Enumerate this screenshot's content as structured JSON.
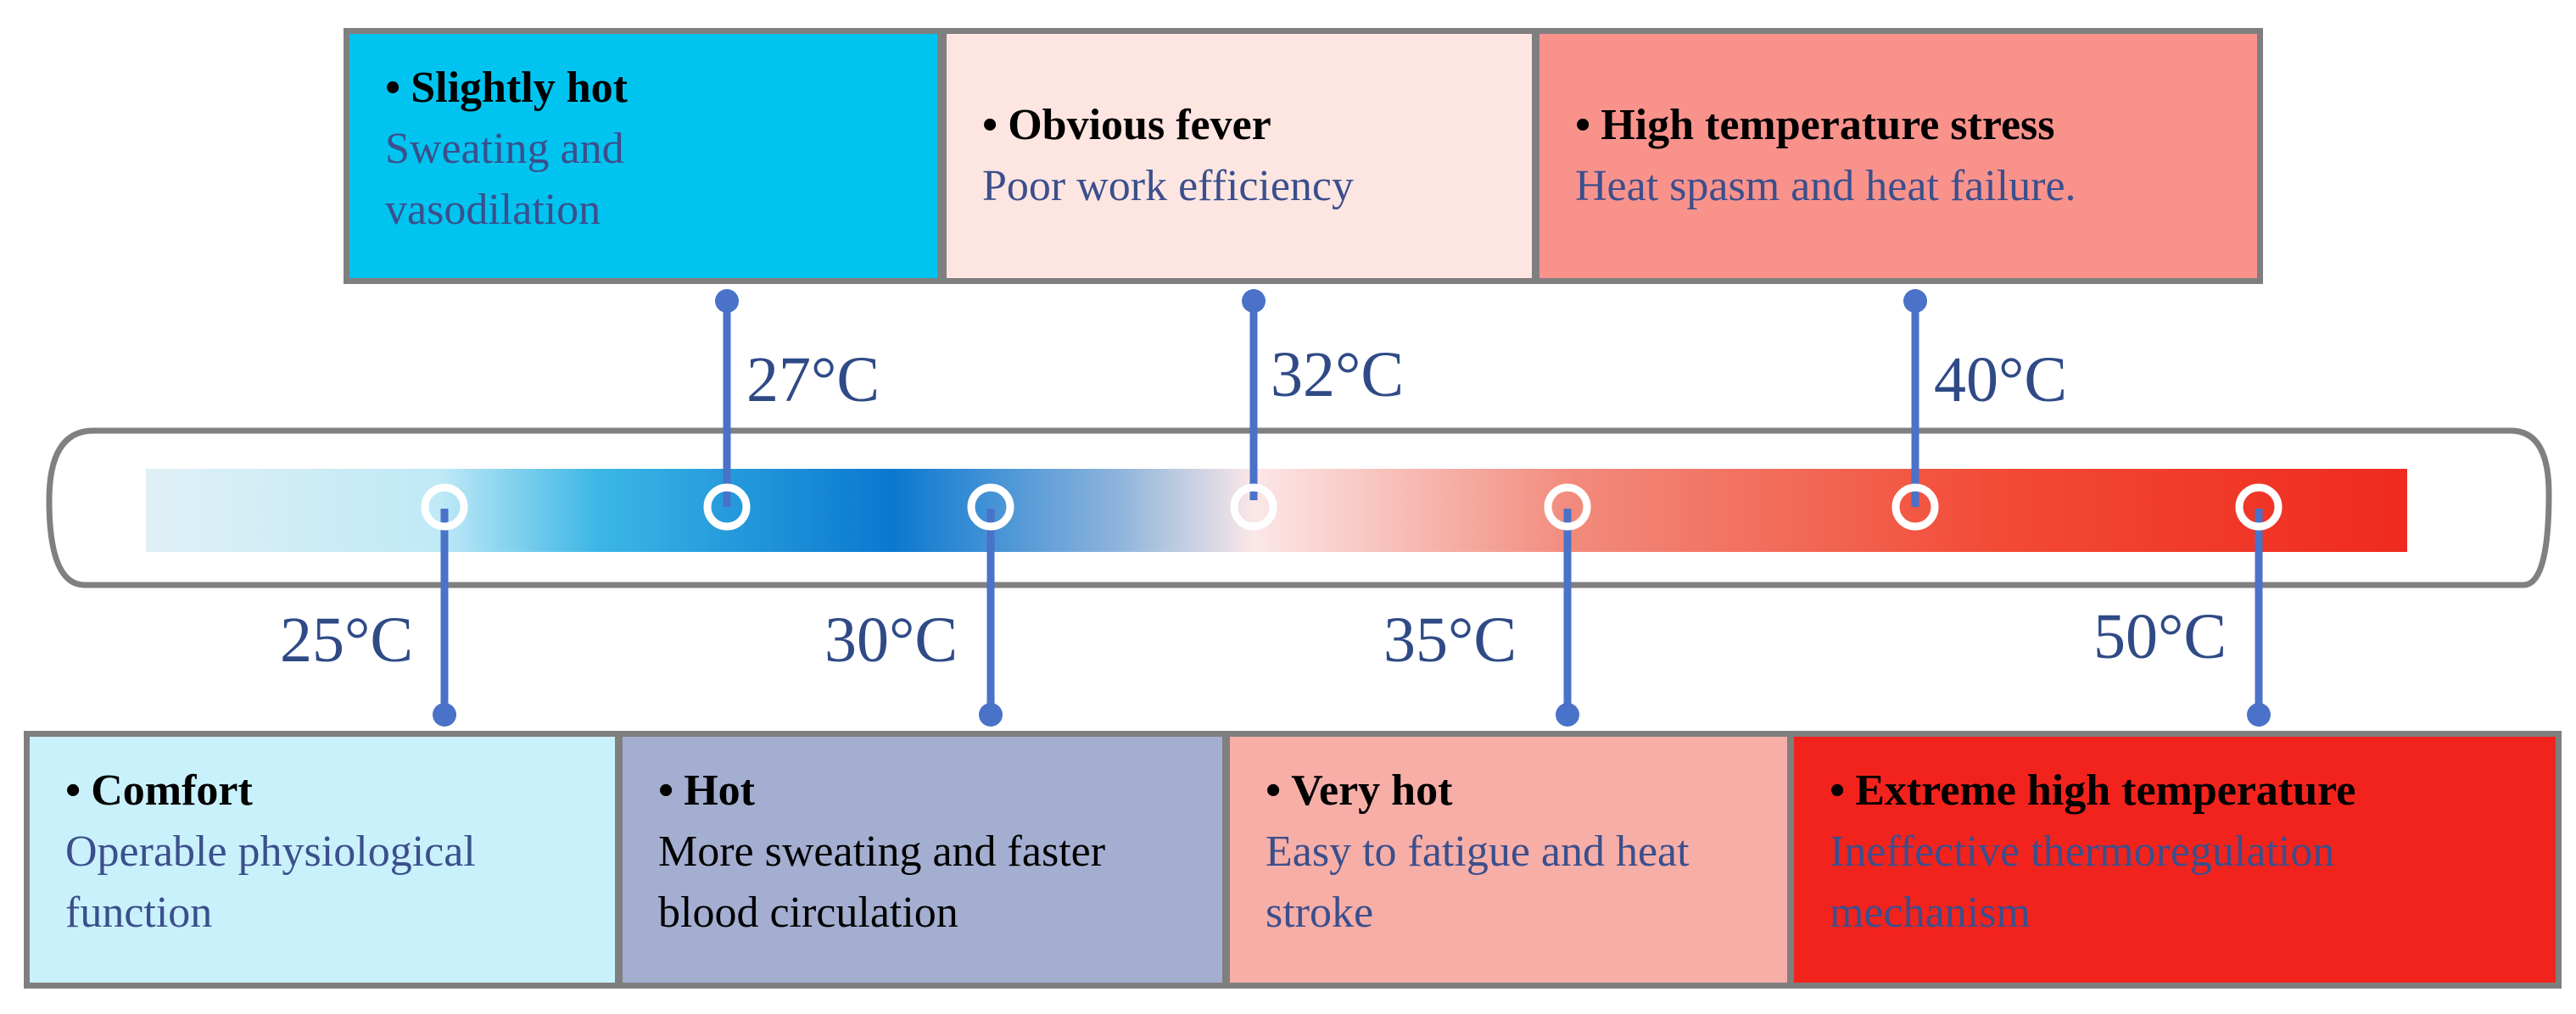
{
  "colors": {
    "connector": "#4a72c8",
    "text_desc": "#3b4f8c",
    "temp_label": "#2f4a86",
    "box_border": "#7f7f7f",
    "tube_border": "#808080",
    "gradient": [
      "#dff0f6",
      "#bfe9f6",
      "#3cb6e6",
      "#0a78d0",
      "#8eb4dc",
      "#fbe7e7",
      "#f28b7d",
      "#f24a35",
      "#ef2a1e"
    ]
  },
  "stages": {
    "comfort": {
      "temp": "25°C",
      "title": "Comfort",
      "desc": "Operable physiological function",
      "bg": "#c9f1fb"
    },
    "slightly": {
      "temp": "27°C",
      "title": "Slightly hot",
      "desc": "Sweating and vasodilation",
      "bg": "#00c4ef"
    },
    "hot": {
      "temp": "30°C",
      "title": "Hot",
      "desc": "More sweating and faster blood circulation",
      "bg": "#a3aed0"
    },
    "fever": {
      "temp": "32°C",
      "title": "Obvious fever",
      "desc": "Poor work efficiency",
      "bg": "#fde6e2"
    },
    "veryhot": {
      "temp": "35°C",
      "title": "Very hot",
      "desc": "Easy to fatigue and heat stroke",
      "bg": "#f7aea7"
    },
    "stress": {
      "temp": "40°C",
      "title": "High temperature stress",
      "desc": "Heat spasm and heat failure.",
      "bg": "#fa928c"
    },
    "extreme": {
      "temp": "50°C",
      "title": "Extreme high temperature",
      "desc": "Ineffective thermoregulation mechanism",
      "bg": "#f2231d"
    }
  }
}
